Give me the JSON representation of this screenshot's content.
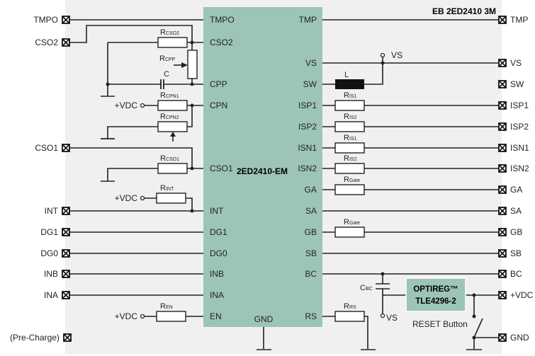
{
  "title": "EB 2ED2410 3M",
  "colors": {
    "chip": "#9dc4b9",
    "board": "#f0f0f0",
    "wire": "#222222"
  },
  "chip": {
    "name": "2ED2410-EM",
    "left_pins": [
      "TMPO",
      "CSO2",
      "CPP",
      "CPN",
      "CSO1",
      "INT",
      "DG1",
      "DG0",
      "INB",
      "INA",
      "EN"
    ],
    "right_pins": [
      "TMP",
      "VS",
      "SW",
      "ISP1",
      "ISP2",
      "ISN1",
      "ISN2",
      "GA",
      "SA",
      "GB",
      "SB",
      "BC",
      "RS"
    ],
    "bottom_pin": "GND"
  },
  "left_terminals": [
    "TMPO",
    "CSO2",
    "CSO1",
    "INT",
    "DG1",
    "DG0",
    "INB",
    "INA",
    "(Pre-Charge)"
  ],
  "right_terminals": [
    "TMP",
    "VS",
    "SW",
    "ISP1",
    "ISP2",
    "ISN1",
    "ISN2",
    "GA",
    "SA",
    "GB",
    "SB",
    "BC",
    "+VDC",
    "GND"
  ],
  "components": {
    "r_cso2": {
      "main": "R",
      "sub": "CSO2"
    },
    "r_cpp": {
      "main": "R",
      "sub": "CPP"
    },
    "c": "C",
    "r_cpn1": {
      "main": "R",
      "sub": "CPN1"
    },
    "r_cpn2": {
      "main": "R",
      "sub": "CPN2"
    },
    "r_cso1": {
      "main": "R",
      "sub": "CSO1"
    },
    "r_int": {
      "main": "R",
      "sub": "INT"
    },
    "r_en": {
      "main": "R",
      "sub": "EN"
    },
    "l": "L",
    "r_isp1": {
      "main": "R",
      "sub": "IS1"
    },
    "r_isp2": {
      "main": "R",
      "sub": "IS2"
    },
    "r_isn1": {
      "main": "R",
      "sub": "IS1"
    },
    "r_isn2": {
      "main": "R",
      "sub": "IS2"
    },
    "r_ga": {
      "main": "R",
      "sub": "Gate"
    },
    "r_gb": {
      "main": "R",
      "sub": "Gate"
    },
    "r_rs": {
      "main": "R",
      "sub": "RS"
    },
    "c_bc": {
      "main": "C",
      "sub": "BC"
    }
  },
  "supply": {
    "vdc": "+VDC",
    "vs": "VS"
  },
  "regulator": {
    "line1": "OPTIREG™",
    "line2": "TLE4296-2"
  },
  "reset_label": "RESET Button"
}
